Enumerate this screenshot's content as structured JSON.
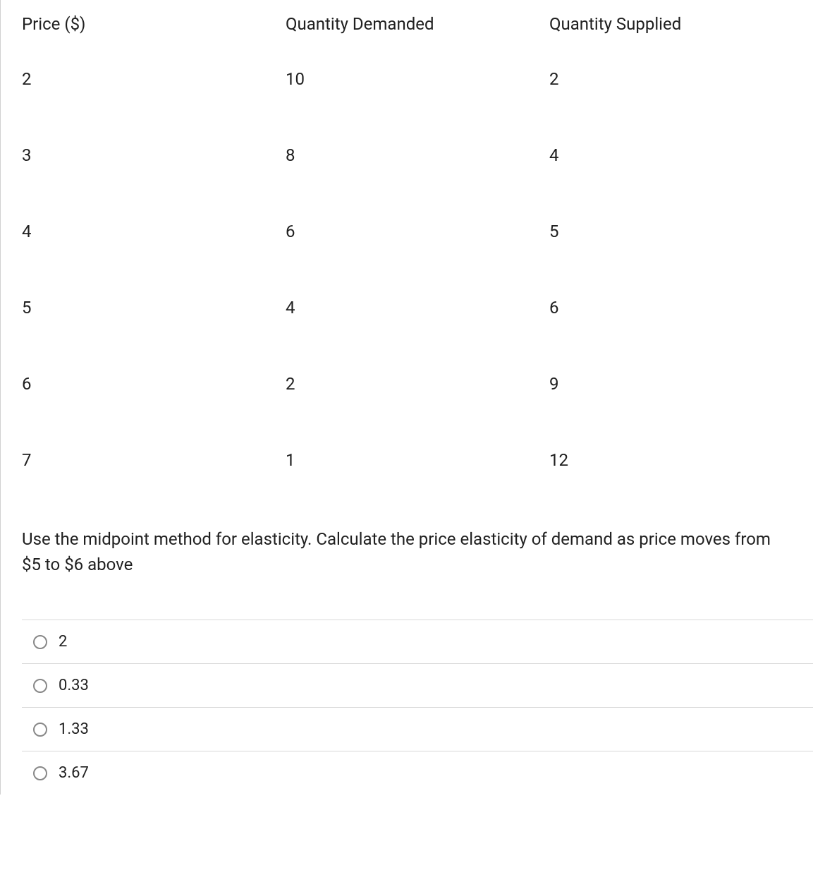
{
  "table": {
    "type": "table",
    "columns": [
      "Price ($)",
      "Quantity Demanded",
      "Quantity Supplied"
    ],
    "rows": [
      [
        "2",
        "10",
        "2"
      ],
      [
        "3",
        "8",
        "4"
      ],
      [
        "4",
        "6",
        "5"
      ],
      [
        "5",
        "4",
        "6"
      ],
      [
        "6",
        "2",
        "9"
      ],
      [
        "7",
        "1",
        "12"
      ]
    ],
    "header_fontsize": 24,
    "cell_fontsize": 24,
    "text_color": "#202020",
    "background_color": "#ffffff"
  },
  "question": {
    "text": "Use the midpoint method for elasticity. Calculate the price elasticity of demand as price moves from $5 to $6 above",
    "fontsize": 24,
    "text_color": "#202020"
  },
  "answers": {
    "options": [
      "2",
      "0.33",
      "1.33",
      "3.67"
    ],
    "selected": null,
    "border_color": "#d8d8d8",
    "radio_border_color": "#888888",
    "fontsize": 22
  }
}
